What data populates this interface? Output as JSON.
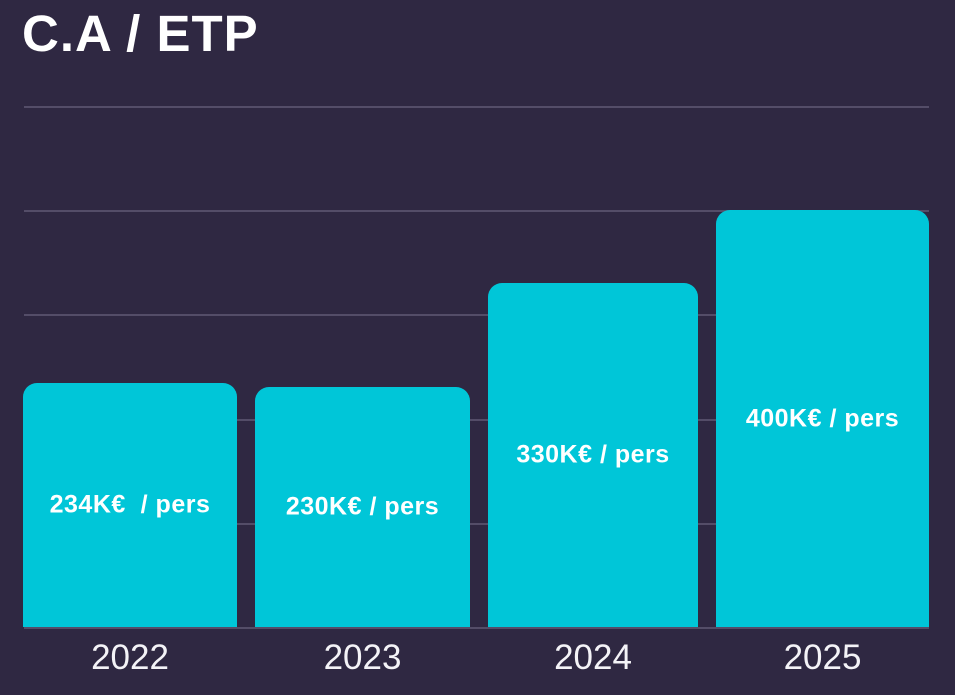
{
  "page": {
    "title": "C.A / ETP",
    "background_color": "#2f2842"
  },
  "chart_data": {
    "type": "bar",
    "title": "C.A / ETP",
    "categories": [
      "2022",
      "2023",
      "2024",
      "2025"
    ],
    "values": [
      234,
      230,
      330,
      400
    ],
    "unit": "K€ / pers",
    "bar_labels": [
      "234K€  / pers",
      "230K€ / pers",
      "330K€ / pers",
      "400K€ / pers"
    ],
    "xlabel": "",
    "ylabel": "",
    "ylim": [
      0,
      500
    ],
    "grid_step": 100,
    "grid": "horizontal",
    "legend": "none",
    "colors": {
      "bar": "#00c6d8",
      "background": "#2f2842",
      "gridline": "#544d68",
      "bar_label_text": "#ffffff",
      "axis_label_text": "#f4f3f7",
      "title_text": "#ffffff"
    }
  }
}
